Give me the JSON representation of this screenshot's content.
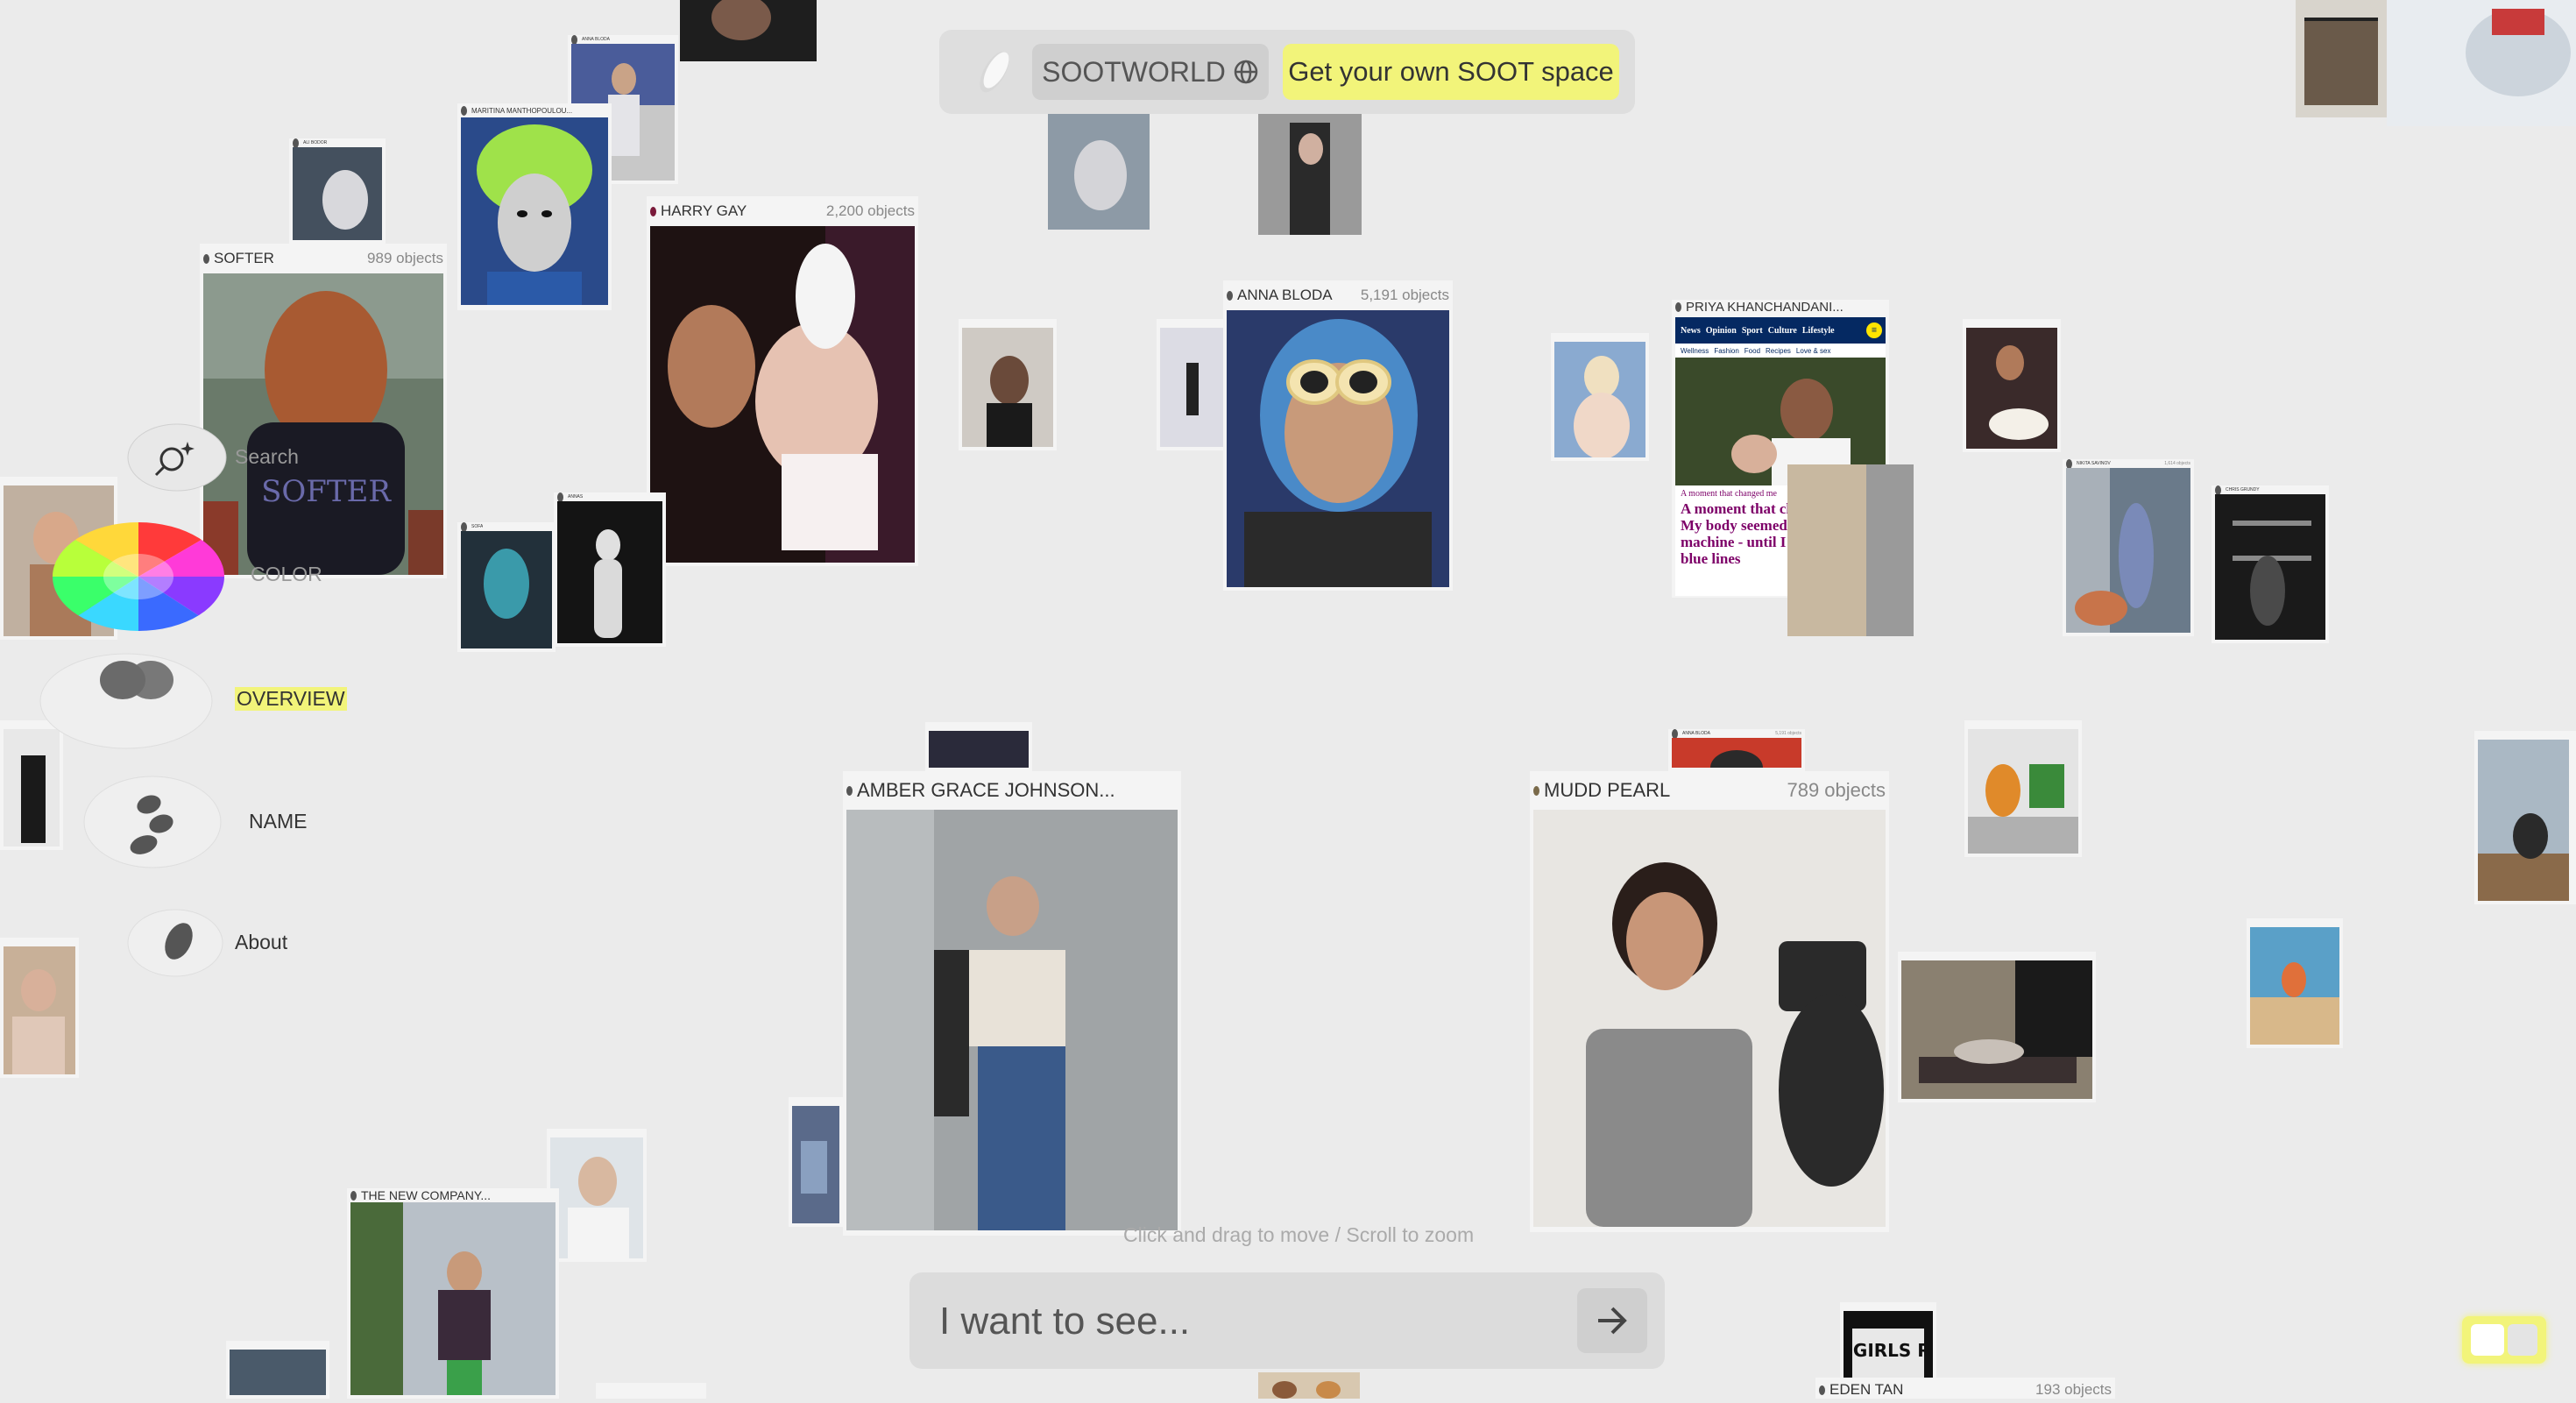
{
  "topbar": {
    "world_label": "SOOTWORLD",
    "cta_label": "Get your own SOOT space"
  },
  "controls": {
    "search_label": "Search",
    "color_label": "COLOR",
    "overview_label": "OVERVIEW",
    "name_label": "NAME",
    "about_label": "About"
  },
  "canvas_hint": "Click and drag to move / Scroll to zoom",
  "prompt": {
    "placeholder": "I want to see..."
  },
  "cards": {
    "softer": {
      "name": "SOFTER",
      "count": "989 objects"
    },
    "harry_gay": {
      "name": "HARRY GAY",
      "count": "2,200 objects"
    },
    "anna_bloda": {
      "name": "ANNA BLODA",
      "count": "5,191 objects"
    },
    "priya": {
      "name": "PRIYA KHANCHANDANI..."
    },
    "amber": {
      "name": "AMBER GRACE JOHNSON..."
    },
    "mudd_pearl": {
      "name": "MUDD PEARL",
      "count": "789 objects"
    },
    "maritina": {
      "name": "MARITINA MANTHOPOULOU..."
    },
    "new_company": {
      "name": "THE NEW COMPANY..."
    },
    "eden_tan": {
      "name": "EDEN TAN",
      "count": "193 objects"
    },
    "nikita": {
      "name": "NIKITA SAVINOV",
      "count": "1,614 objects"
    },
    "anna_bloda_small": {
      "name": "ANNA BLODA",
      "count": "5,191 objects"
    },
    "anna_bloda_tiny": {
      "name": "ANNA BLODA"
    },
    "chris_grundy": {
      "name": "CHRIS GRUNDY"
    },
    "annas": {
      "name": "ANNAS"
    },
    "sofa": {
      "name": "SOFA"
    },
    "ali_bodor": {
      "name": "ALI BODOR"
    }
  },
  "article": {
    "nav": [
      "News",
      "Opinion",
      "Sport",
      "Culture",
      "Lifestyle"
    ],
    "subnav": [
      "Wellness",
      "Fashion",
      "Food",
      "Recipes",
      "Love & sex"
    ],
    "kicker": "A moment that changed me",
    "headline": "A moment that changed me: My body seemed like a death machine - until I saw those two blue lines"
  },
  "book_text": "HOT GIRLS READ",
  "colors": {
    "accent_yellow": "#f2f47a",
    "background": "#ebebeb",
    "panel": "#dcdcdc",
    "article_navy": "#052962",
    "article_magenta": "#7d0068"
  }
}
